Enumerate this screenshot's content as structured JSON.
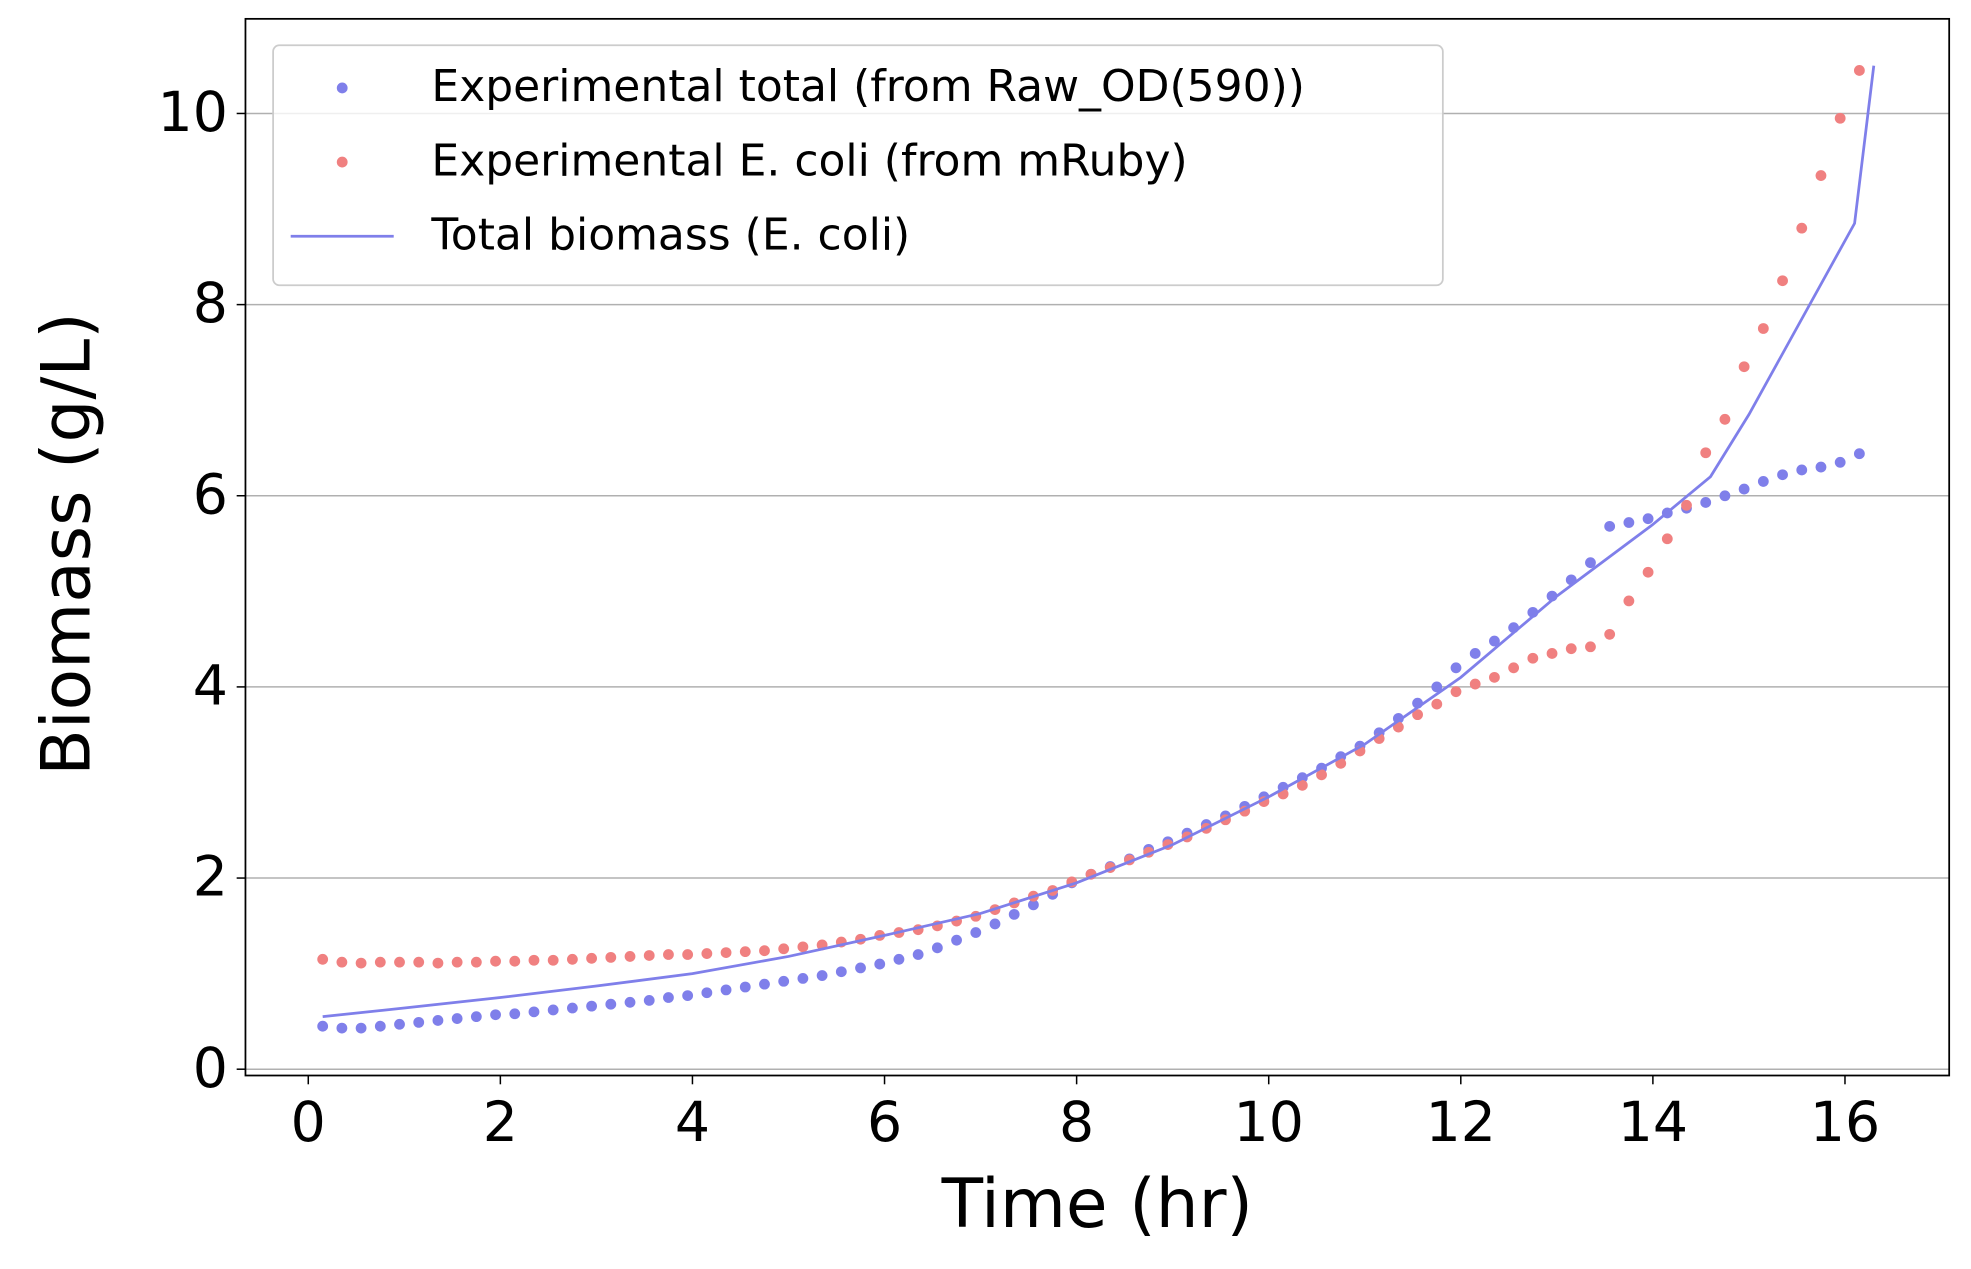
{
  "chart_data": {
    "type": "scatter",
    "xlabel": "Time (hr)",
    "ylabel": "Biomass (g/L)",
    "xlim": [
      -0.654,
      17.085
    ],
    "ylim": [
      -0.066,
      10.99
    ],
    "xticks": [
      0,
      2,
      4,
      6,
      8,
      10,
      12,
      14,
      16
    ],
    "yticks": [
      0,
      2,
      4,
      6,
      8,
      10
    ],
    "grid": "y",
    "legend": "upper left",
    "x": [
      0.15,
      0.35,
      0.55,
      0.75,
      0.95,
      1.15,
      1.35,
      1.55,
      1.75,
      1.95,
      2.15,
      2.35,
      2.55,
      2.75,
      2.95,
      3.15,
      3.35,
      3.55,
      3.75,
      3.95,
      4.15,
      4.35,
      4.55,
      4.75,
      4.95,
      5.15,
      5.35,
      5.55,
      5.75,
      5.95,
      6.15,
      6.35,
      6.55,
      6.75,
      6.95,
      7.15,
      7.35,
      7.55,
      7.75,
      7.95,
      8.15,
      8.35,
      8.55,
      8.75,
      8.95,
      9.15,
      9.35,
      9.55,
      9.75,
      9.95,
      10.15,
      10.35,
      10.55,
      10.75,
      10.95,
      11.15,
      11.35,
      11.55,
      11.75,
      11.95,
      12.15,
      12.35,
      12.55,
      12.75,
      12.95,
      13.15,
      13.35,
      13.55,
      13.75,
      13.95,
      14.15,
      14.35,
      14.55,
      14.75,
      14.95,
      15.15,
      15.35,
      15.55,
      15.75,
      15.95,
      16.15
    ],
    "series": [
      {
        "name": "Experimental total (from Raw_OD(590))",
        "color": "#7f7fea",
        "values": [
          0.45,
          0.43,
          0.43,
          0.45,
          0.47,
          0.49,
          0.51,
          0.53,
          0.55,
          0.57,
          0.58,
          0.6,
          0.62,
          0.64,
          0.66,
          0.68,
          0.7,
          0.72,
          0.75,
          0.77,
          0.8,
          0.83,
          0.86,
          0.89,
          0.92,
          0.95,
          0.98,
          1.02,
          1.06,
          1.1,
          1.15,
          1.2,
          1.27,
          1.35,
          1.43,
          1.52,
          1.62,
          1.72,
          1.83,
          1.95,
          2.04,
          2.12,
          2.2,
          2.3,
          2.38,
          2.47,
          2.56,
          2.65,
          2.75,
          2.85,
          2.95,
          3.05,
          3.15,
          3.27,
          3.38,
          3.52,
          3.67,
          3.83,
          4.0,
          4.2,
          4.35,
          4.48,
          4.62,
          4.78,
          4.95,
          5.12,
          5.3,
          5.68,
          5.72,
          5.76,
          5.82,
          5.87,
          5.93,
          6.0,
          6.07,
          6.15,
          6.22,
          6.27,
          6.3,
          6.35,
          6.44
        ]
      },
      {
        "name": "Experimental E. coli (from mRuby)",
        "color": "#f08080",
        "values": [
          1.15,
          1.12,
          1.11,
          1.12,
          1.12,
          1.12,
          1.11,
          1.12,
          1.12,
          1.13,
          1.13,
          1.14,
          1.14,
          1.15,
          1.16,
          1.17,
          1.18,
          1.19,
          1.2,
          1.2,
          1.21,
          1.22,
          1.23,
          1.24,
          1.26,
          1.28,
          1.3,
          1.33,
          1.36,
          1.4,
          1.43,
          1.46,
          1.5,
          1.55,
          1.6,
          1.67,
          1.74,
          1.81,
          1.87,
          1.96,
          2.04,
          2.11,
          2.19,
          2.27,
          2.35,
          2.43,
          2.52,
          2.61,
          2.7,
          2.8,
          2.88,
          2.97,
          3.08,
          3.2,
          3.33,
          3.46,
          3.58,
          3.71,
          3.82,
          3.95,
          4.03,
          4.1,
          4.2,
          4.3,
          4.35,
          4.4,
          4.42,
          4.55,
          4.9,
          5.2,
          5.55,
          5.9,
          6.45,
          6.8,
          7.35,
          7.75,
          8.25,
          8.8,
          9.35,
          9.95,
          10.45
        ]
      },
      {
        "name": "Total biomass (E. coli)",
        "color": "#7f7fea",
        "type": "line",
        "x": [
          0.15,
          1,
          2,
          3,
          4,
          5,
          6,
          7,
          8,
          9,
          10,
          11,
          12,
          13,
          14,
          14.6,
          15,
          16.1,
          16.3
        ],
        "values": [
          0.55,
          0.64,
          0.75,
          0.87,
          1.0,
          1.18,
          1.4,
          1.63,
          1.95,
          2.35,
          2.85,
          3.4,
          4.1,
          4.95,
          5.7,
          6.2,
          6.85,
          8.85,
          10.5
        ]
      }
    ]
  }
}
